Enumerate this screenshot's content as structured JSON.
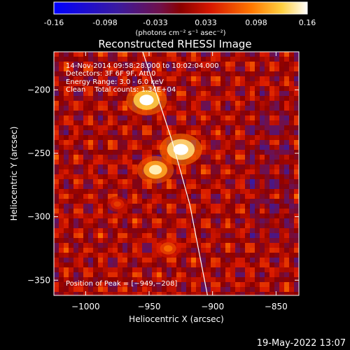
{
  "colorbar": {
    "ticks": [
      "-0.16",
      "-0.098",
      "-0.033",
      "0.033",
      "0.098",
      "0.16"
    ],
    "units": "(photons cm⁻² s⁻¹ asec⁻²)",
    "range": [
      -0.16,
      0.16
    ]
  },
  "chart_data": {
    "type": "heatmap",
    "title": "Reconstructed RHESSI Image",
    "xlabel": "Heliocentric X (arcsec)",
    "ylabel": "Heliocentric Y (arcsec)",
    "xlim": [
      -1025,
      -832
    ],
    "ylim": [
      -362,
      -170
    ],
    "xticks": [
      {
        "value": -1000,
        "label": "−1000"
      },
      {
        "value": -950,
        "label": "−950"
      },
      {
        "value": -900,
        "label": "−900"
      },
      {
        "value": -850,
        "label": "−850"
      }
    ],
    "yticks": [
      {
        "value": -200,
        "label": "−200"
      },
      {
        "value": -250,
        "label": "−250"
      },
      {
        "value": -300,
        "label": "−300"
      },
      {
        "value": -350,
        "label": "−350"
      }
    ],
    "annotations": [
      "14-Nov-2014 09:58:28.000 to 10:02:04.000",
      "Detectors: 3F 6F 9F, Att 0",
      "Energy Range: 3.0 - 6.0 keV",
      "Clean    Total counts: 1.34E+04"
    ],
    "peak_label": "Position of Peak = [−949,−208]",
    "peak": [
      -949,
      -208
    ],
    "sources": [
      {
        "x": -925,
        "y": -247,
        "intensity": 0.16
      },
      {
        "x": -945,
        "y": -263,
        "intensity": 0.13
      },
      {
        "x": -952,
        "y": -208,
        "intensity": 0.15
      },
      {
        "x": -935,
        "y": -325,
        "intensity": 0.07
      },
      {
        "x": -975,
        "y": -290,
        "intensity": 0.05
      }
    ],
    "limb": [
      [
        -955,
        -170
      ],
      [
        -932,
        -240
      ],
      [
        -918,
        -290
      ],
      [
        -904,
        -362
      ]
    ]
  },
  "footer": {
    "date": "19-May-2022 13:07"
  }
}
